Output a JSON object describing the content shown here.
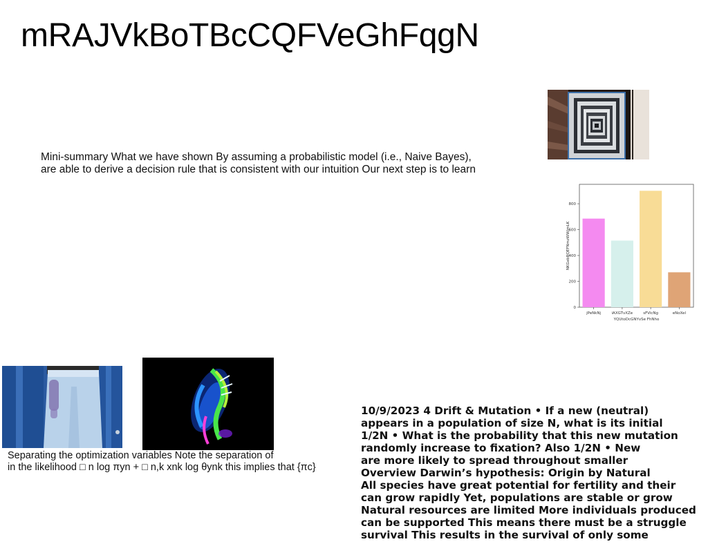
{
  "page": {
    "title": "mRAJVkBoTBcCQFVeGhFqgN"
  },
  "summary_text": {
    "lines": [
      "Mini-summary What we have shown By assuming a probabilistic model (i.e., Naive Bayes),",
      "are able to derive a decision rule that is consistent with our intuition Our next step is to learn"
    ]
  },
  "optimization_text": {
    "lines": [
      "Separating the optimization variables Note the separation of",
      "in the likelihood □ n log πyn + □ n,k xnk log θynk this implies that {πc}"
    ]
  },
  "drift_text": {
    "lines": [
      "10/9/2023 4 Drift & Mutation • If a new (neutral)",
      "appears in a population of size N, what is its initial",
      "1/2N • What is the probability that this new mutation",
      "randomly increase to fixation? Also 1/2N • New",
      "are more likely to spread throughout smaller",
      "Overview Darwin’s hypothesis: Origin by Natural",
      "All species have great potential for fertility and their",
      "can grow rapidly Yet, populations are stable or grow",
      "Natural resources are limited More individuals produced",
      "can be supported This means there must be a struggle",
      "survival This results in the survival of only some"
    ]
  },
  "images": {
    "tunnel": "spiral staircase photo",
    "jeans": "denim shirt and jeans photo",
    "light": "colorful light trail photo"
  },
  "chart_data": {
    "type": "bar",
    "categories": [
      "jPeNkNj",
      "iAXGTvXZe",
      "sFVicNg",
      "eNoXel"
    ],
    "values": [
      685,
      515,
      900,
      270
    ],
    "colors": [
      "#f48af0",
      "#d6f0ec",
      "#f8dc96",
      "#dfa476"
    ],
    "xlabel": "YQUtoDcGNYvSe FhNho",
    "ylabel": "NKGebRQEFNmzWWjmLK",
    "yticks": [
      0,
      200,
      400,
      600,
      800
    ],
    "ylim": [
      0,
      950
    ],
    "grid": false,
    "title": ""
  }
}
